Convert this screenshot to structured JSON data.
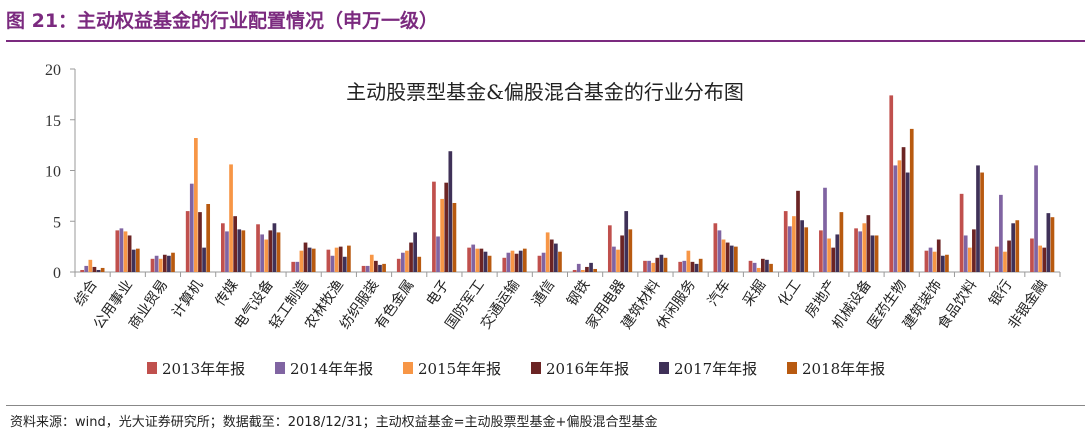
{
  "header": {
    "figure_title": "图 21：主动权益基金的行业配置情况（申万一级）"
  },
  "footer": {
    "source": "资料来源：wind，光大证券研究所；数据截至：2018/12/31；主动权益基金=主动股票型基金+偏股混合型基金"
  },
  "colors": {
    "accent": "#7b2a7f",
    "series": [
      "#c0504d",
      "#8064a2",
      "#f79646",
      "#6b2424",
      "#3f3158",
      "#b85a10"
    ]
  },
  "chart_data": {
    "type": "bar",
    "title": "主动股票型基金&偏股混合基金的行业分布图",
    "xlabel": "",
    "ylabel": "",
    "ylim": [
      0,
      20
    ],
    "yticks": [
      "0",
      "5",
      "10",
      "15",
      "20"
    ],
    "grid": false,
    "legend": "bottom",
    "categories": [
      "综合",
      "公用事业",
      "商业贸易",
      "计算机",
      "传媒",
      "电气设备",
      "轻工制造",
      "农林牧渔",
      "纺织服装",
      "有色金属",
      "电子",
      "国防军工",
      "交通运输",
      "通信",
      "钢铁",
      "家用电器",
      "建筑材料",
      "休闲服务",
      "汽车",
      "采掘",
      "化工",
      "房地产",
      "机械设备",
      "医药生物",
      "建筑装饰",
      "食品饮料",
      "银行",
      "非银金融"
    ],
    "series": [
      {
        "name": "2013年年报",
        "values": [
          0.2,
          4.1,
          1.3,
          6.0,
          4.8,
          4.7,
          1.0,
          2.2,
          0.6,
          1.3,
          8.9,
          2.4,
          1.4,
          1.6,
          0.2,
          4.6,
          1.1,
          1.0,
          4.8,
          1.1,
          6.0,
          4.1,
          4.3,
          17.4,
          2.1,
          7.7,
          2.5,
          3.3
        ]
      },
      {
        "name": "2014年年报",
        "values": [
          0.6,
          4.3,
          1.6,
          8.7,
          4.0,
          3.7,
          1.0,
          1.6,
          0.6,
          1.9,
          3.5,
          2.7,
          1.9,
          1.9,
          0.8,
          2.5,
          1.1,
          1.1,
          4.1,
          0.9,
          4.5,
          8.3,
          4.0,
          10.5,
          2.4,
          3.6,
          7.6,
          10.5
        ]
      },
      {
        "name": "2015年年报",
        "values": [
          1.2,
          4.0,
          1.3,
          13.2,
          10.6,
          3.2,
          2.1,
          2.4,
          1.7,
          2.1,
          7.2,
          2.3,
          2.1,
          3.9,
          0.2,
          2.2,
          0.9,
          2.1,
          3.2,
          0.4,
          5.5,
          3.3,
          4.8,
          11.0,
          2.0,
          2.4,
          2.0,
          2.6
        ]
      },
      {
        "name": "2016年年报",
        "values": [
          0.5,
          3.6,
          1.7,
          5.9,
          5.5,
          4.1,
          2.9,
          2.5,
          1.1,
          2.9,
          8.8,
          2.3,
          1.8,
          3.2,
          0.5,
          3.6,
          1.4,
          1.0,
          2.9,
          1.3,
          8.0,
          2.4,
          5.6,
          12.3,
          3.2,
          4.2,
          3.1,
          2.4
        ]
      },
      {
        "name": "2017年年报",
        "values": [
          0.2,
          2.2,
          1.6,
          2.4,
          4.2,
          4.8,
          2.4,
          1.5,
          0.7,
          3.9,
          11.9,
          2.0,
          2.1,
          2.8,
          0.9,
          6.0,
          1.7,
          0.8,
          2.6,
          1.2,
          5.1,
          3.7,
          3.6,
          9.8,
          1.6,
          10.5,
          4.8,
          5.8
        ]
      },
      {
        "name": "2018年年报",
        "values": [
          0.4,
          2.3,
          1.9,
          6.7,
          4.1,
          3.9,
          2.3,
          2.6,
          0.8,
          1.5,
          6.8,
          1.6,
          2.3,
          2.0,
          0.3,
          4.2,
          1.4,
          1.3,
          2.5,
          0.8,
          4.4,
          5.9,
          3.6,
          14.1,
          1.7,
          9.8,
          5.1,
          5.4
        ]
      }
    ]
  }
}
